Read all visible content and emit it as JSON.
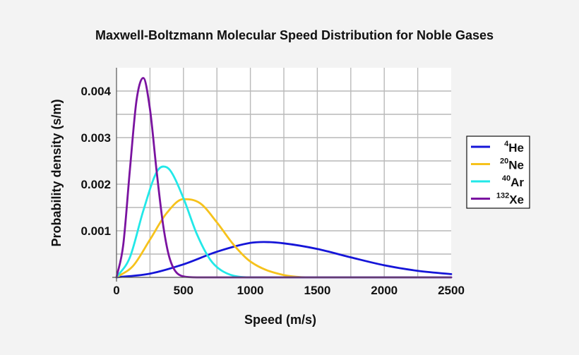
{
  "chart_data": {
    "type": "line",
    "title": "Maxwell-Boltzmann Molecular Speed Distribution for Noble Gases",
    "xlabel": "Speed (m/s)",
    "ylabel": "Probability density (s/m)",
    "xlim": [
      0,
      2500
    ],
    "ylim": [
      0,
      0.0045
    ],
    "x_ticks": [
      0,
      500,
      1000,
      1500,
      2000,
      2500
    ],
    "x_tick_labels": [
      "0",
      "500",
      "1000",
      "1500",
      "2000",
      "2500"
    ],
    "y_ticks": [
      0.001,
      0.002,
      0.003,
      0.004
    ],
    "y_tick_labels": [
      "0.001",
      "0.002",
      "0.003",
      "0.004"
    ],
    "grid": true,
    "legend_position": "right",
    "series": [
      {
        "name": "4He",
        "mass_number": "4",
        "element": "He",
        "color": "#1515d8",
        "x": [
          0,
          250,
          500,
          750,
          1000,
          1100,
          1250,
          1500,
          1750,
          2000,
          2250,
          2500
        ],
        "y": [
          0,
          8e-05,
          0.00028,
          0.00055,
          0.00074,
          0.00076,
          0.00073,
          0.00061,
          0.00043,
          0.00026,
          0.00014,
          7e-05
        ]
      },
      {
        "name": "20Ne",
        "mass_number": "20",
        "element": "Ne",
        "color": "#f6c21c",
        "x": [
          0,
          125,
          250,
          375,
          500,
          625,
          750,
          875,
          1000,
          1250,
          1500
        ],
        "y": [
          0,
          0.00025,
          0.00081,
          0.00138,
          0.00168,
          0.00159,
          0.00118,
          0.0007,
          0.00034,
          5e-05,
          0.0
        ],
        "peak": [
          492,
          0.00168
        ]
      },
      {
        "name": "40Ar",
        "mass_number": "40",
        "element": "Ar",
        "color": "#22e8e8",
        "x": [
          0,
          100,
          200,
          300,
          350,
          400,
          500,
          600,
          700,
          800,
          1000
        ],
        "y": [
          0,
          0.00043,
          0.00143,
          0.00226,
          0.00238,
          0.0023,
          0.0017,
          0.00093,
          0.00038,
          0.00012,
          0.0
        ],
        "peak": [
          350,
          0.00238
        ]
      },
      {
        "name": "132Xe",
        "mass_number": "132",
        "element": "Xe",
        "color": "#7a13a0",
        "x": [
          0,
          50,
          100,
          150,
          200,
          250,
          300,
          350,
          400,
          500,
          600
        ],
        "y": [
          0,
          0.00069,
          0.00231,
          0.00381,
          0.00428,
          0.00361,
          0.00227,
          0.00109,
          0.00038,
          2e-05,
          0.0
        ],
        "peak": [
          194,
          0.00428
        ]
      }
    ]
  }
}
